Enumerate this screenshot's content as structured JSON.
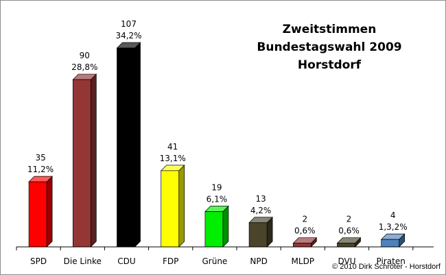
{
  "chart_data": {
    "type": "bar",
    "title": [
      "Zweitstimmen",
      "Bundestagswahl  2009",
      "Horstdorf"
    ],
    "categories": [
      "SPD",
      "Die Linke",
      "CDU",
      "FDP",
      "Grüne",
      "NPD",
      "MLDP",
      "DVU",
      "Piraten"
    ],
    "values": [
      35,
      90,
      107,
      41,
      19,
      13,
      2,
      2,
      4
    ],
    "value_labels": [
      "35",
      "90",
      "107",
      "41",
      "19",
      "13",
      "2",
      "2",
      "4"
    ],
    "percent_labels": [
      "11,2%",
      "28,8%",
      "34,2%",
      "13,1%",
      "6,1%",
      "4,2%",
      "0,6%",
      "0,6%",
      "1,3,2%"
    ],
    "colors": [
      "#ff0000",
      "#943634",
      "#000000",
      "#ffff00",
      "#00ee00",
      "#4a442a",
      "#943634",
      "#4a442a",
      "#4f81bd"
    ],
    "grid": false,
    "legend": "none"
  },
  "copyright": "© 2010 Dirk Schröter - Horstdorf"
}
